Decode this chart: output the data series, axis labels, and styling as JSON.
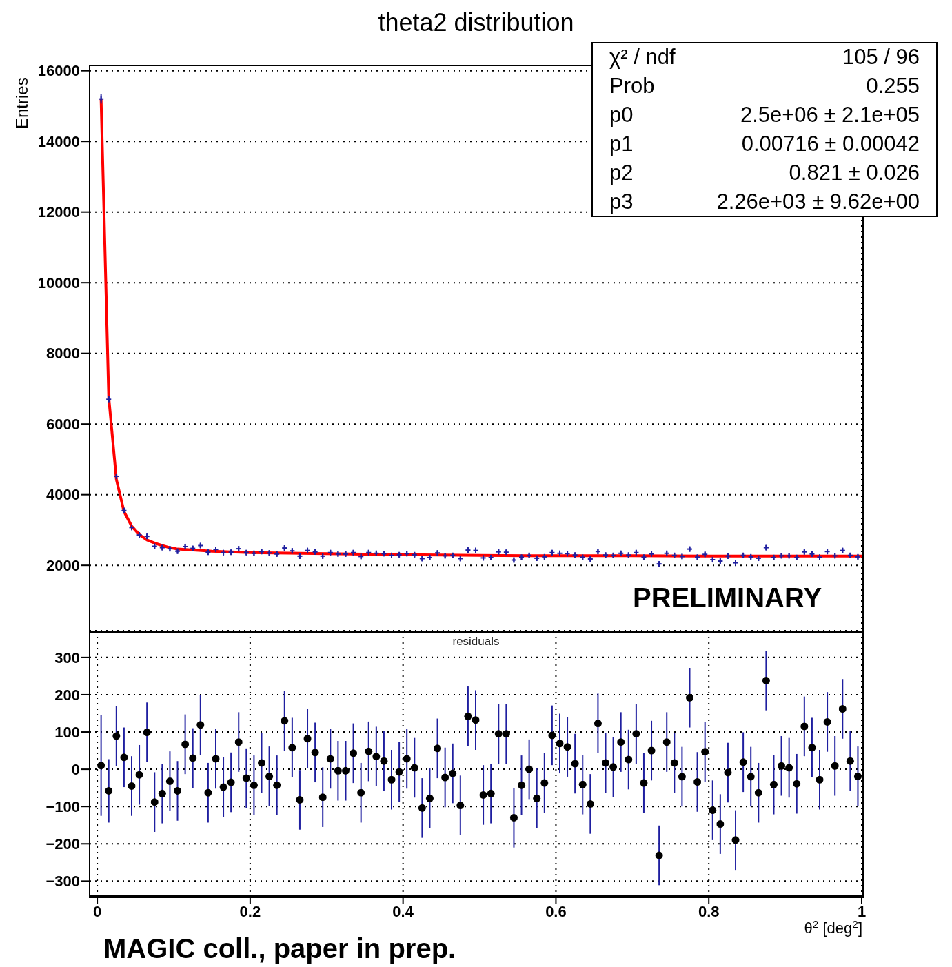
{
  "chart_data": [
    {
      "type": "scatter",
      "title": "theta2 distribution",
      "ylabel": "Entries",
      "xlim": [
        -0.01,
        1
      ],
      "xticks": [
        0,
        0.2,
        0.4,
        0.6,
        0.8,
        1
      ],
      "ylim": [
        150,
        16150
      ],
      "yticks": [
        2000,
        4000,
        6000,
        8000,
        10000,
        12000,
        14000,
        16000
      ],
      "tick_labels": "y",
      "grid": true,
      "annotations": [
        "χ² / ndf",
        "105 / 96",
        "Prob",
        "0.255",
        "p0",
        "2.5e+06 ± 2.1e+05",
        "p1",
        "0.00716 ± 0.00042",
        "p2",
        "0.821 ± 0.026",
        "p3",
        "2.26e+03 ± 9.62e+00",
        "PRELIMINARY"
      ],
      "series": [
        {
          "type": "scatter",
          "color": "#1f1fa0",
          "marker": "cross",
          "x": [
            0.005,
            0.015,
            0.025,
            0.035,
            0.045,
            0.055,
            0.065,
            0.075,
            0.085,
            0.095,
            0.105,
            0.115,
            0.125,
            0.135,
            0.145,
            0.155,
            0.165,
            0.175,
            0.185,
            0.195,
            0.205,
            0.215,
            0.225,
            0.235,
            0.245,
            0.255,
            0.265,
            0.275,
            0.285,
            0.295,
            0.305,
            0.315,
            0.325,
            0.335,
            0.345,
            0.355,
            0.365,
            0.375,
            0.385,
            0.395,
            0.405,
            0.415,
            0.425,
            0.435,
            0.445,
            0.455,
            0.465,
            0.475,
            0.485,
            0.495,
            0.505,
            0.515,
            0.525,
            0.535,
            0.545,
            0.555,
            0.565,
            0.575,
            0.585,
            0.595,
            0.605,
            0.615,
            0.625,
            0.635,
            0.645,
            0.655,
            0.665,
            0.675,
            0.685,
            0.695,
            0.705,
            0.715,
            0.725,
            0.735,
            0.745,
            0.755,
            0.765,
            0.775,
            0.785,
            0.795,
            0.805,
            0.815,
            0.825,
            0.835,
            0.845,
            0.855,
            0.865,
            0.875,
            0.885,
            0.895,
            0.905,
            0.915,
            0.925,
            0.935,
            0.945,
            0.955,
            0.965,
            0.975,
            0.985,
            0.995
          ],
          "values": [
            15200,
            6700,
            4520,
            3550,
            3070,
            2860,
            2820,
            2540,
            2500,
            2470,
            2400,
            2530,
            2480,
            2560,
            2370,
            2450,
            2360,
            2370,
            2470,
            2360,
            2340,
            2390,
            2350,
            2320,
            2490,
            2410,
            2260,
            2420,
            2380,
            2260,
            2360,
            2320,
            2320,
            2360,
            2250,
            2360,
            2340,
            2330,
            2280,
            2300,
            2330,
            2300,
            2190,
            2220,
            2350,
            2270,
            2280,
            2190,
            2430,
            2420,
            2210,
            2220,
            2380,
            2370,
            2150,
            2230,
            2280,
            2200,
            2240,
            2360,
            2340,
            2330,
            2290,
            2230,
            2180,
            2390,
            2290,
            2280,
            2340,
            2290,
            2360,
            2230,
            2320,
            2040,
            2340,
            2280,
            2250,
            2460,
            2230,
            2310,
            2160,
            2120,
            2260,
            2070,
            2280,
            2240,
            2200,
            2500,
            2220,
            2270,
            2270,
            2220,
            2380,
            2320,
            2230,
            2390,
            2270,
            2420,
            2280,
            2240
          ],
          "errors": [
            130,
            85,
            80,
            80,
            80,
            80,
            80,
            80,
            80,
            80,
            80,
            80,
            80,
            80,
            80,
            80,
            80,
            80,
            80,
            80,
            80,
            80,
            80,
            80,
            80,
            80,
            80,
            80,
            80,
            80,
            80,
            80,
            80,
            80,
            80,
            80,
            80,
            80,
            80,
            80,
            80,
            80,
            80,
            80,
            80,
            80,
            80,
            80,
            80,
            80,
            80,
            80,
            80,
            80,
            80,
            80,
            80,
            80,
            80,
            80,
            80,
            80,
            80,
            80,
            80,
            80,
            80,
            80,
            80,
            80,
            80,
            80,
            80,
            80,
            80,
            80,
            80,
            80,
            80,
            80,
            80,
            80,
            80,
            80,
            80,
            80,
            80,
            80,
            80,
            80,
            80,
            80,
            80,
            80,
            80,
            80,
            80,
            80,
            80,
            80
          ]
        },
        {
          "type": "line",
          "color": "#ff0000",
          "x": [
            0.005,
            0.015,
            0.025,
            0.035,
            0.045,
            0.055,
            0.065,
            0.075,
            0.085,
            0.095,
            0.105,
            0.15,
            0.2,
            0.3,
            0.4,
            0.5,
            0.6,
            0.7,
            0.8,
            0.9,
            1
          ],
          "values": [
            15200,
            6760,
            4430,
            3520,
            3110,
            2870,
            2720,
            2630,
            2560,
            2500,
            2460,
            2400,
            2360,
            2330,
            2300,
            2280,
            2270,
            2270,
            2260,
            2260,
            2260
          ]
        }
      ]
    },
    {
      "type": "scatter",
      "title": "residuals",
      "xlabel": "θ$^{2}$ [deg$^{2}$]",
      "xlim": [
        -0.01,
        1
      ],
      "xticks": [
        0,
        0.2,
        0.4,
        0.6,
        0.8,
        1
      ],
      "ylim": [
        -340,
        370
      ],
      "yticks": [
        {
          "value": -300,
          "label": "−300"
        },
        {
          "value": -200,
          "label": "−200"
        },
        {
          "value": -100,
          "label": "−100"
        },
        0,
        100,
        200,
        300
      ],
      "grid": true,
      "marker": "circle",
      "annotations": [
        "MAGIC coll., paper in prep."
      ],
      "series": [
        {
          "type": "scatter",
          "color": "#000000",
          "x": [
            0.005,
            0.015,
            0.025,
            0.035,
            0.045,
            0.055,
            0.065,
            0.075,
            0.085,
            0.095,
            0.105,
            0.115,
            0.125,
            0.135,
            0.145,
            0.155,
            0.165,
            0.175,
            0.185,
            0.195,
            0.205,
            0.215,
            0.225,
            0.235,
            0.245,
            0.255,
            0.265,
            0.275,
            0.285,
            0.295,
            0.305,
            0.315,
            0.325,
            0.335,
            0.345,
            0.355,
            0.365,
            0.375,
            0.385,
            0.395,
            0.405,
            0.415,
            0.425,
            0.435,
            0.445,
            0.455,
            0.465,
            0.475,
            0.485,
            0.495,
            0.505,
            0.515,
            0.525,
            0.535,
            0.545,
            0.555,
            0.565,
            0.575,
            0.585,
            0.595,
            0.605,
            0.615,
            0.625,
            0.635,
            0.645,
            0.655,
            0.665,
            0.675,
            0.685,
            0.695,
            0.705,
            0.715,
            0.725,
            0.735,
            0.745,
            0.755,
            0.765,
            0.775,
            0.785,
            0.795,
            0.805,
            0.815,
            0.825,
            0.835,
            0.845,
            0.855,
            0.865,
            0.875,
            0.885,
            0.895,
            0.905,
            0.915,
            0.925,
            0.935,
            0.945,
            0.955,
            0.965,
            0.975,
            0.985,
            0.995
          ],
          "values": [
            10,
            -58,
            89,
            32,
            -45,
            -15,
            99,
            -88,
            -65,
            -32,
            -58,
            67,
            30,
            119,
            -63,
            28,
            -48,
            -35,
            73,
            -24,
            -43,
            17,
            -19,
            -43,
            130,
            58,
            -82,
            82,
            45,
            -75,
            28,
            -4,
            -4,
            43,
            -63,
            48,
            34,
            22,
            -28,
            -7,
            28,
            4,
            -104,
            -78,
            56,
            -22,
            -11,
            -97,
            142,
            132,
            -69,
            -65,
            95,
            95,
            -130,
            -43,
            0,
            -78,
            -37,
            91,
            69,
            60,
            15,
            -41,
            -93,
            123,
            17,
            6,
            73,
            26,
            95,
            -37,
            50,
            -231,
            73,
            17,
            -20,
            192,
            -34,
            47,
            -110,
            -147,
            -9,
            -190,
            19,
            -20,
            -63,
            238,
            -41,
            9,
            4,
            -39,
            115,
            58,
            -28,
            127,
            9,
            162,
            22,
            -19
          ],
          "errors": [
            135,
            85,
            80,
            80,
            80,
            80,
            80,
            80,
            80,
            80,
            80,
            80,
            80,
            80,
            80,
            80,
            80,
            80,
            80,
            80,
            80,
            80,
            80,
            80,
            80,
            80,
            80,
            80,
            80,
            80,
            80,
            80,
            80,
            80,
            80,
            80,
            80,
            80,
            80,
            80,
            80,
            80,
            80,
            80,
            80,
            80,
            80,
            80,
            80,
            80,
            80,
            80,
            80,
            80,
            80,
            80,
            80,
            80,
            80,
            80,
            80,
            80,
            80,
            80,
            80,
            80,
            80,
            80,
            80,
            80,
            80,
            80,
            80,
            80,
            80,
            80,
            80,
            80,
            80,
            80,
            80,
            80,
            80,
            80,
            80,
            80,
            80,
            80,
            80,
            80,
            80,
            80,
            80,
            80,
            80,
            80,
            80,
            80,
            80,
            80
          ]
        }
      ]
    }
  ]
}
